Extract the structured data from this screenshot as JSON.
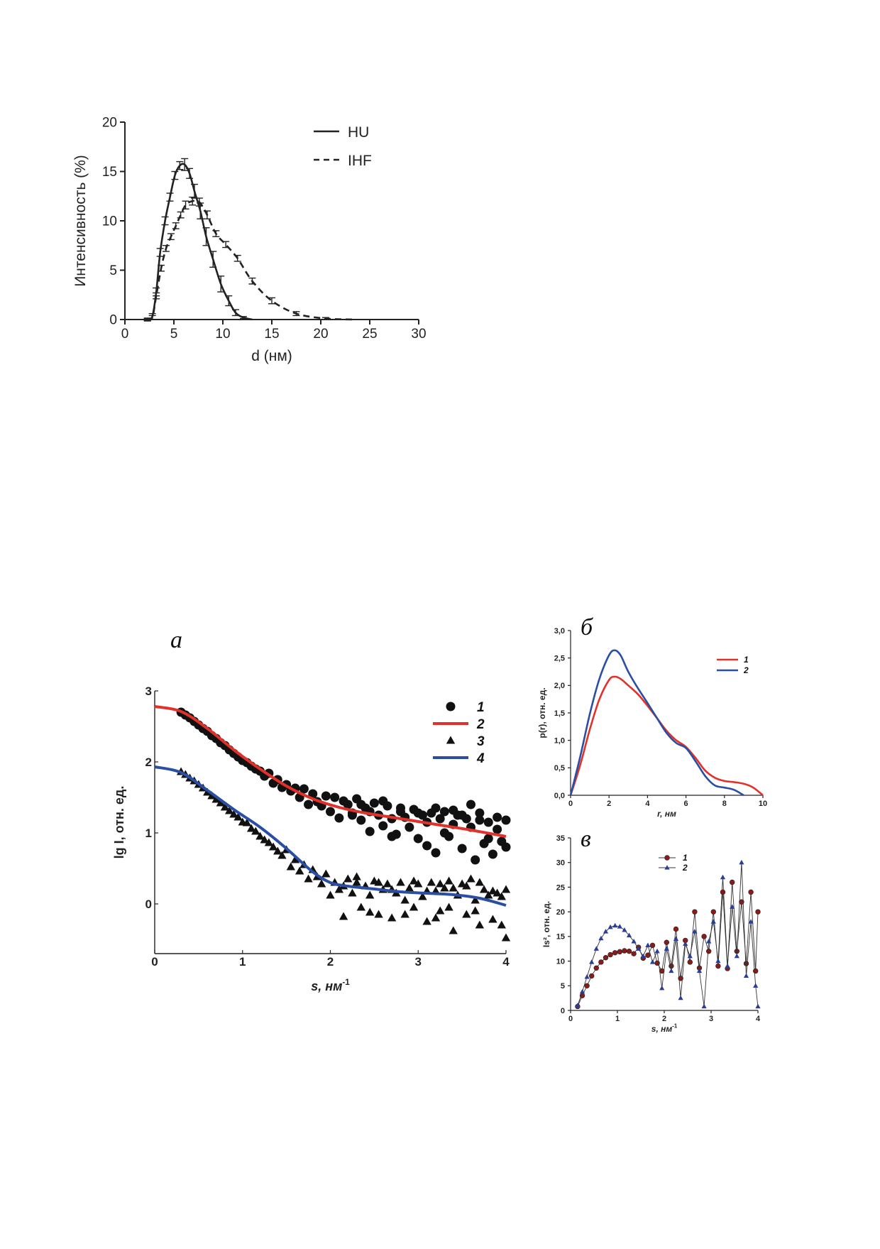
{
  "chart_data": [
    {
      "id": "dls",
      "type": "line",
      "ylabel": "Интенсивность (%)",
      "xlabel": "d (нм)",
      "xlim": [
        0,
        30
      ],
      "ylim": [
        0,
        20
      ],
      "xticks": [
        0,
        5,
        10,
        15,
        20,
        25,
        30
      ],
      "yticks": [
        0,
        5,
        10,
        15,
        20
      ],
      "legend": {
        "placement": "top-right"
      },
      "series": [
        {
          "name": "HU",
          "style": "solid",
          "color": "#222222",
          "x": [
            2.3,
            2.8,
            3.2,
            3.6,
            4.1,
            4.6,
            5.1,
            5.6,
            6.1,
            6.6,
            7.1,
            7.7,
            8.3,
            9.0,
            9.8,
            10.6,
            11.3,
            12.1,
            13.0
          ],
          "y": [
            0.0,
            0.3,
            2.8,
            6.8,
            10.0,
            12.4,
            14.6,
            15.6,
            15.7,
            14.8,
            13.0,
            11.0,
            8.4,
            6.1,
            3.6,
            1.9,
            0.7,
            0.2,
            0.0
          ],
          "err": [
            0.15,
            0.3,
            0.4,
            0.4,
            0.4,
            0.4,
            0.4,
            0.4,
            0.6,
            0.5,
            0.7,
            0.8,
            0.9,
            0.8,
            0.8,
            0.5,
            0.3,
            0.1,
            0.0
          ]
        },
        {
          "name": "IHF",
          "style": "dashed",
          "color": "#222222",
          "x": [
            2.3,
            2.8,
            3.2,
            3.7,
            4.2,
            4.7,
            5.2,
            5.7,
            6.2,
            6.9,
            7.6,
            8.4,
            9.3,
            10.3,
            11.5,
            13.0,
            15.0,
            17.5,
            20.5,
            23.5
          ],
          "y": [
            0.0,
            0.2,
            2.4,
            5.2,
            7.2,
            8.4,
            9.5,
            10.6,
            11.6,
            12.0,
            11.9,
            10.6,
            8.7,
            7.6,
            6.2,
            3.9,
            1.9,
            0.6,
            0.1,
            0.0
          ],
          "err": [
            0.1,
            0.2,
            0.3,
            0.3,
            0.3,
            0.3,
            0.3,
            0.3,
            0.4,
            0.4,
            0.4,
            0.4,
            0.3,
            0.3,
            0.3,
            0.3,
            0.3,
            0.2,
            0.1,
            0.0
          ]
        }
      ]
    },
    {
      "id": "saxs",
      "type": "scatter",
      "panel_label": "а",
      "ylabel": "lg I, отн. ед.",
      "xlabel": "s, нм",
      "xlabel_exp": "-1",
      "xlim": [
        0,
        4
      ],
      "ylim": [
        -0.7,
        3
      ],
      "xticks": [
        0,
        1,
        2,
        3,
        4
      ],
      "yticks": [
        0,
        1,
        2,
        3
      ],
      "legend": {
        "placement": "top-right",
        "entries": [
          "1",
          "2",
          "3",
          "4"
        ]
      },
      "series": [
        {
          "name": "1",
          "kind": "points",
          "marker": "circle",
          "color": "#111111",
          "x": [
            0.3,
            0.35,
            0.4,
            0.45,
            0.5,
            0.55,
            0.6,
            0.65,
            0.7,
            0.75,
            0.8,
            0.85,
            0.9,
            0.95,
            1.0,
            1.05,
            1.1,
            1.15,
            1.2,
            1.25,
            1.3,
            1.35,
            1.4,
            1.45,
            1.5,
            1.55,
            1.6,
            1.65,
            1.7,
            1.75,
            1.8,
            1.85,
            1.9,
            1.95,
            2.0,
            2.05,
            2.1,
            2.15,
            2.2,
            2.25,
            2.3,
            2.35,
            2.4,
            2.45,
            2.5,
            2.55,
            2.6,
            2.65,
            2.7,
            2.75,
            2.8,
            2.85,
            2.9,
            2.95,
            3.0,
            3.05,
            3.1,
            3.15,
            3.2,
            3.25,
            3.3,
            3.35,
            3.4,
            3.45,
            3.5,
            3.55,
            3.6,
            3.65,
            3.7,
            3.75,
            3.8,
            3.85,
            3.9,
            3.95,
            4.0
          ],
          "y": [
            2.7,
            2.66,
            2.62,
            2.57,
            2.52,
            2.47,
            2.43,
            2.37,
            2.33,
            2.27,
            2.23,
            2.17,
            2.12,
            2.07,
            2.02,
            1.99,
            1.94,
            1.9,
            1.87,
            1.8,
            1.84,
            1.7,
            1.75,
            1.64,
            1.68,
            1.59,
            1.63,
            1.5,
            1.62,
            1.4,
            1.55,
            1.44,
            1.38,
            1.52,
            1.3,
            1.5,
            1.21,
            1.45,
            1.4,
            1.28,
            1.48,
            1.18,
            1.35,
            1.02,
            1.42,
            1.25,
            1.1,
            1.38,
            1.2,
            0.98,
            1.3,
            1.22,
            1.08,
            1.33,
            0.92,
            1.25,
            1.15,
            1.28,
            0.72,
            1.2,
            1.3,
            0.95,
            1.12,
            1.25,
            0.78,
            1.2,
            1.08,
            0.62,
            1.28,
            0.85,
            1.15,
            0.7,
            1.05,
            0.88,
            0.8
          ],
          "y2": [
            null,
            null,
            null,
            null,
            null,
            null,
            null,
            null,
            null,
            null,
            null,
            null,
            null,
            null,
            null,
            null,
            null,
            null,
            null,
            null,
            null,
            null,
            null,
            null,
            null,
            null,
            null,
            null,
            null,
            null,
            null,
            null,
            null,
            null,
            null,
            null,
            null,
            null,
            null,
            1.25,
            null,
            1.4,
            null,
            1.3,
            null,
            null,
            1.45,
            null,
            0.95,
            null,
            1.35,
            null,
            null,
            null,
            1.28,
            null,
            0.82,
            null,
            1.35,
            null,
            1.0,
            null,
            1.32,
            null,
            1.25,
            null,
            1.4,
            null,
            1.18,
            null,
            0.92,
            null,
            1.22,
            null,
            1.18
          ]
        },
        {
          "name": "2",
          "kind": "fit",
          "color": "#e0312a",
          "x": [
            0,
            0.3,
            0.6,
            0.9,
            1.2,
            1.5,
            1.8,
            2.1,
            2.4,
            2.7,
            3.0,
            3.3,
            3.6,
            4.0
          ],
          "y": [
            2.78,
            2.71,
            2.47,
            2.17,
            1.9,
            1.66,
            1.48,
            1.36,
            1.28,
            1.22,
            1.16,
            1.1,
            1.04,
            0.95
          ]
        },
        {
          "name": "3",
          "kind": "points",
          "marker": "triangle",
          "color": "#111111",
          "x": [
            0.3,
            0.35,
            0.4,
            0.45,
            0.5,
            0.55,
            0.6,
            0.65,
            0.7,
            0.75,
            0.8,
            0.85,
            0.9,
            0.95,
            1.0,
            1.05,
            1.1,
            1.15,
            1.2,
            1.25,
            1.3,
            1.35,
            1.4,
            1.45,
            1.5,
            1.55,
            1.6,
            1.65,
            1.7,
            1.75,
            1.8,
            1.85,
            1.9,
            1.95,
            2.0,
            2.05,
            2.1,
            2.15,
            2.2,
            2.25,
            2.3,
            2.35,
            2.4,
            2.45,
            2.5,
            2.55,
            2.6,
            2.65,
            2.7,
            2.75,
            2.8,
            2.85,
            2.9,
            2.95,
            3.0,
            3.05,
            3.1,
            3.15,
            3.2,
            3.25,
            3.3,
            3.35,
            3.4,
            3.45,
            3.5,
            3.55,
            3.6,
            3.65,
            3.7,
            3.75,
            3.8,
            3.85,
            3.9,
            3.95,
            4.0
          ],
          "y": [
            1.86,
            1.82,
            1.77,
            1.73,
            1.68,
            1.63,
            1.57,
            1.52,
            1.47,
            1.42,
            1.36,
            1.31,
            1.26,
            1.22,
            1.15,
            1.14,
            1.06,
            1.02,
            0.95,
            0.9,
            0.86,
            0.8,
            0.74,
            0.68,
            0.76,
            0.52,
            0.62,
            0.46,
            0.55,
            0.35,
            0.48,
            0.38,
            0.28,
            0.42,
            0.12,
            0.3,
            0.2,
            -0.18,
            0.35,
            0.15,
            0.3,
            -0.05,
            0.25,
            0.12,
            0.32,
            -0.15,
            0.2,
            0.28,
            -0.2,
            0.15,
            0.3,
            0.05,
            0.22,
            -0.05,
            0.28,
            0.1,
            -0.25,
            0.3,
            0.18,
            -0.1,
            0.22,
            0.32,
            -0.38,
            0.12,
            0.28,
            -0.15,
            0.35,
            0.05,
            -0.3,
            0.2,
            0.12,
            -0.22,
            0.15,
            -0.3,
            -0.48
          ],
          "y2": [
            null,
            null,
            null,
            null,
            null,
            null,
            null,
            null,
            null,
            null,
            null,
            null,
            null,
            null,
            null,
            null,
            null,
            null,
            null,
            null,
            null,
            null,
            null,
            null,
            null,
            null,
            null,
            null,
            null,
            null,
            null,
            null,
            null,
            null,
            null,
            null,
            null,
            0.25,
            null,
            null,
            0.38,
            null,
            null,
            -0.12,
            null,
            0.3,
            null,
            null,
            0.2,
            null,
            null,
            -0.15,
            null,
            0.32,
            null,
            null,
            0.18,
            null,
            -0.2,
            0.28,
            null,
            -0.05,
            0.22,
            null,
            null,
            0.25,
            null,
            -0.1,
            0.3,
            null,
            null,
            0.18,
            null,
            0.1,
            0.2
          ]
        },
        {
          "name": "4",
          "kind": "fit",
          "color": "#2a4ea4",
          "x": [
            0,
            0.3,
            0.6,
            0.9,
            1.2,
            1.5,
            1.8,
            2.0,
            2.2,
            2.5,
            2.8,
            3.1,
            3.4,
            3.7,
            4.0
          ],
          "y": [
            1.93,
            1.85,
            1.6,
            1.33,
            1.08,
            0.78,
            0.45,
            0.3,
            0.25,
            0.21,
            0.17,
            0.15,
            0.13,
            0.08,
            -0.02
          ]
        }
      ]
    },
    {
      "id": "pr",
      "type": "line",
      "panel_label": "б",
      "ylabel": "p(r), отн. ед.",
      "xlabel": "r,  нм",
      "xlim": [
        0,
        10
      ],
      "ylim": [
        0,
        3
      ],
      "xticks": [
        "0",
        "2",
        "4",
        "6",
        "8",
        "10"
      ],
      "yticks": [
        "0,0",
        "0,5",
        "1,0",
        "1,5",
        "2,0",
        "2,5",
        "3,0"
      ],
      "legend": {
        "placement": "top-right"
      },
      "series": [
        {
          "name": "1",
          "color": "#e0312a",
          "x": [
            0,
            0.5,
            1.0,
            1.5,
            2.0,
            2.3,
            2.6,
            3.0,
            3.5,
            4.0,
            4.5,
            5.0,
            5.5,
            6.0,
            6.5,
            7.0,
            7.5,
            8.0,
            8.5,
            9.0,
            9.5,
            10.0
          ],
          "y": [
            0,
            0.55,
            1.2,
            1.75,
            2.1,
            2.16,
            2.12,
            2.0,
            1.84,
            1.63,
            1.4,
            1.17,
            1.0,
            0.88,
            0.68,
            0.45,
            0.32,
            0.26,
            0.24,
            0.21,
            0.14,
            0
          ]
        },
        {
          "name": "2",
          "color": "#2a4ea4",
          "x": [
            0,
            0.5,
            1.0,
            1.5,
            2.0,
            2.3,
            2.6,
            3.0,
            3.5,
            4.0,
            4.5,
            5.0,
            5.5,
            6.0,
            6.5,
            7.0,
            7.5,
            8.0,
            8.5,
            9.0
          ],
          "y": [
            0,
            0.7,
            1.48,
            2.12,
            2.55,
            2.64,
            2.55,
            2.25,
            1.95,
            1.68,
            1.4,
            1.13,
            0.95,
            0.86,
            0.62,
            0.35,
            0.18,
            0.14,
            0.1,
            0
          ]
        }
      ]
    },
    {
      "id": "kratky",
      "type": "line",
      "panel_label": "в",
      "ylabel": "Is², отн. ед.",
      "xlabel": "s, нм",
      "xlabel_exp": "-1",
      "xlim": [
        0,
        4
      ],
      "ylim": [
        0,
        35
      ],
      "xticks": [
        0,
        1,
        2,
        3,
        4
      ],
      "yticks": [
        0,
        5,
        10,
        15,
        20,
        25,
        30,
        35
      ],
      "legend": {
        "placement": "top-center"
      },
      "series": [
        {
          "name": "1",
          "marker": "circle",
          "color": "#8b1a1a",
          "x": [
            0.15,
            0.25,
            0.35,
            0.45,
            0.55,
            0.65,
            0.75,
            0.85,
            0.95,
            1.05,
            1.15,
            1.25,
            1.35,
            1.45,
            1.55,
            1.65,
            1.75,
            1.85,
            1.95,
            2.05,
            2.15,
            2.25,
            2.35,
            2.45,
            2.55,
            2.65,
            2.75,
            2.85,
            2.95,
            3.05,
            3.15,
            3.25,
            3.35,
            3.45,
            3.55,
            3.65,
            3.75,
            3.85,
            3.95,
            4.0
          ],
          "y": [
            0.8,
            3.0,
            5.0,
            7.0,
            8.6,
            9.8,
            10.7,
            11.3,
            11.7,
            11.9,
            12.1,
            12.0,
            11.5,
            12.8,
            10.6,
            11.2,
            13.2,
            9.6,
            8.0,
            13.8,
            9.0,
            16.5,
            6.5,
            14.2,
            9.8,
            20.0,
            8.6,
            15.0,
            12.0,
            20.0,
            9.0,
            24.0,
            8.5,
            26.0,
            12.0,
            22.0,
            9.5,
            24.0,
            8.0,
            20.0
          ]
        },
        {
          "name": "2",
          "marker": "triangle",
          "color": "#2a3d9a",
          "x": [
            0.15,
            0.25,
            0.35,
            0.45,
            0.55,
            0.65,
            0.75,
            0.85,
            0.95,
            1.05,
            1.15,
            1.25,
            1.35,
            1.45,
            1.55,
            1.65,
            1.75,
            1.85,
            1.95,
            2.05,
            2.15,
            2.25,
            2.35,
            2.45,
            2.55,
            2.65,
            2.75,
            2.85,
            2.95,
            3.05,
            3.15,
            3.25,
            3.35,
            3.45,
            3.55,
            3.65,
            3.75,
            3.85,
            3.95,
            4.0
          ],
          "y": [
            1.0,
            3.8,
            6.8,
            9.8,
            12.5,
            14.6,
            16.0,
            16.9,
            17.2,
            17.0,
            16.3,
            15.2,
            14.0,
            12.5,
            11.0,
            13.2,
            9.8,
            12.0,
            4.5,
            12.5,
            8.0,
            14.5,
            2.5,
            13.5,
            11.0,
            16.0,
            8.0,
            0.8,
            14.0,
            18.0,
            10.0,
            27.0,
            9.0,
            21.0,
            11.0,
            30.0,
            7.0,
            18.0,
            5.0,
            0.8
          ]
        }
      ]
    }
  ]
}
